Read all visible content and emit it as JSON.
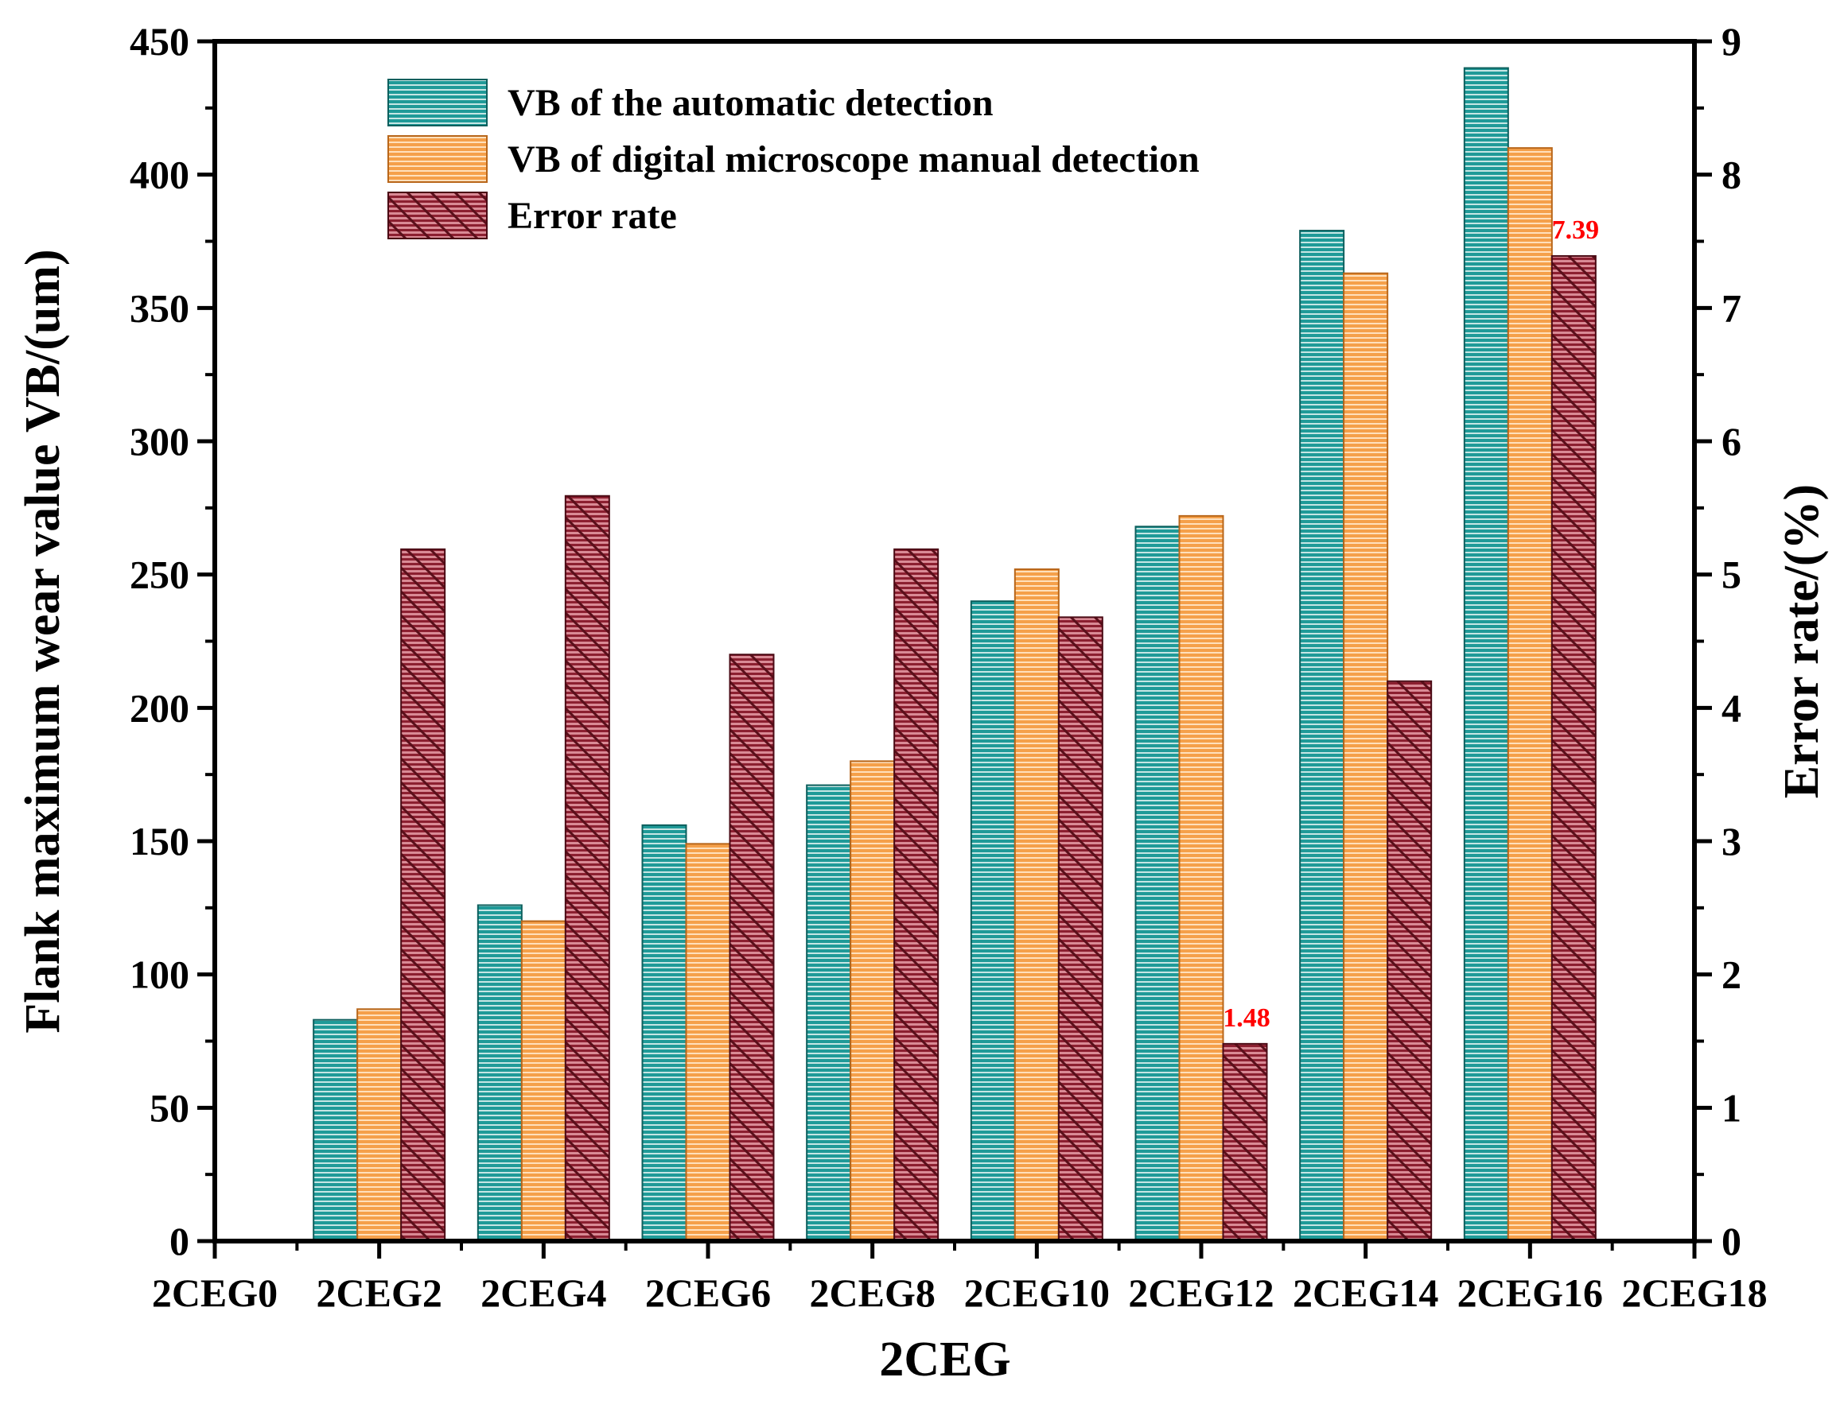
{
  "chart_data": {
    "type": "bar",
    "xlabel": "2CEG",
    "ylabel": "Flank maximum wear value VB/(um)",
    "y2label": "Error rate/(%)",
    "x_tick_labels": [
      "2CEG0",
      "2CEG2",
      "2CEG4",
      "2CEG6",
      "2CEG8",
      "2CEG10",
      "2CEG12",
      "2CEG14",
      "2CEG16",
      "2CEG18"
    ],
    "categories": [
      "2CEG2",
      "2CEG4",
      "2CEG6",
      "2CEG8",
      "2CEG10",
      "2CEG12",
      "2CEG14",
      "2CEG16"
    ],
    "ylim": [
      0,
      450
    ],
    "y_ticks": [
      0,
      50,
      100,
      150,
      200,
      250,
      300,
      350,
      400,
      450
    ],
    "y2lim": [
      0,
      9
    ],
    "y2_ticks": [
      0,
      1,
      2,
      3,
      4,
      5,
      6,
      7,
      8,
      9
    ],
    "series": [
      {
        "name": "VB of the automatic detection",
        "axis": "left",
        "color": "#1f9a98",
        "values": [
          83,
          126,
          156,
          171,
          240,
          268,
          379,
          440
        ]
      },
      {
        "name": "VB of digital microscope manual detection",
        "axis": "left",
        "color": "#f5a04a",
        "values": [
          87,
          120,
          149,
          180,
          252,
          272,
          363,
          410
        ]
      },
      {
        "name": "Error rate",
        "axis": "right",
        "color": "#a42a3c",
        "values": [
          5.19,
          5.59,
          4.4,
          5.19,
          4.68,
          1.48,
          4.2,
          7.39
        ]
      }
    ],
    "annotations": [
      {
        "text": "1.48",
        "category": "2CEG12",
        "series": "Error rate"
      },
      {
        "text": "7.39",
        "category": "2CEG16",
        "series": "Error rate"
      }
    ],
    "legend_position": "top-left",
    "grid": false
  }
}
